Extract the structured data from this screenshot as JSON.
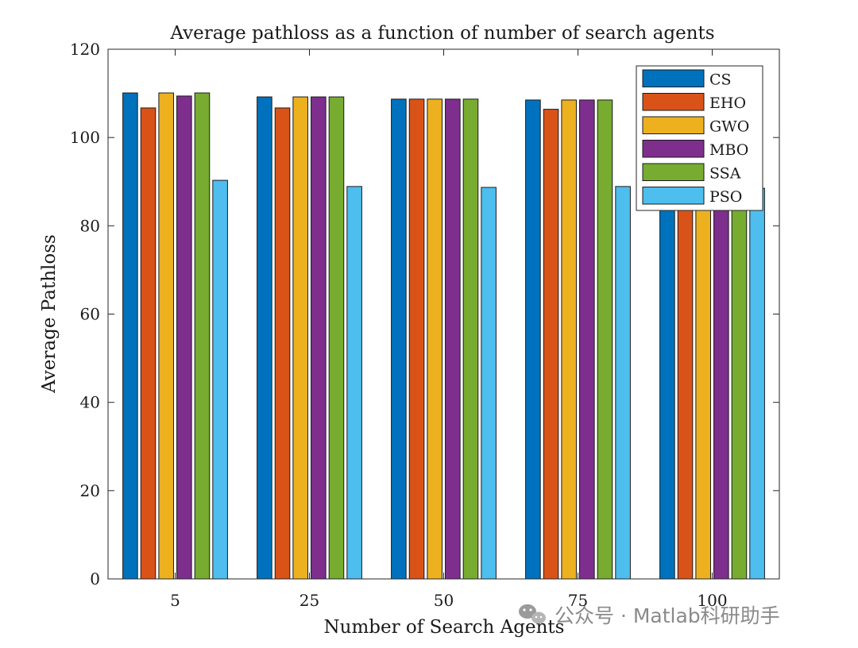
{
  "chart_data": {
    "type": "bar",
    "title": "Average pathloss as a function of number of search agents",
    "xlabel": "Number of Search Agents",
    "ylabel": "Average Pathloss",
    "categories": [
      "5",
      "25",
      "50",
      "75",
      "100"
    ],
    "ylim": [
      0,
      120
    ],
    "yticks": [
      "0",
      "20",
      "40",
      "60",
      "80",
      "100",
      "120"
    ],
    "grid": false,
    "legend_position": "top-right",
    "series": [
      {
        "name": "CS",
        "color": "#0072BD",
        "values": [
          110.1,
          109.2,
          108.7,
          108.5,
          88.5
        ]
      },
      {
        "name": "EHO",
        "color": "#D95319",
        "values": [
          106.7,
          106.7,
          108.7,
          106.4,
          88.5
        ]
      },
      {
        "name": "GWO",
        "color": "#EDB120",
        "values": [
          110.1,
          109.2,
          108.7,
          108.5,
          88.5
        ]
      },
      {
        "name": "MBO",
        "color": "#7E2F8E",
        "values": [
          109.4,
          109.2,
          108.7,
          108.5,
          88.5
        ]
      },
      {
        "name": "SSA",
        "color": "#77AC30",
        "values": [
          110.1,
          109.2,
          108.7,
          108.5,
          88.5
        ]
      },
      {
        "name": "PSO",
        "color": "#4DBEEE",
        "values": [
          90.3,
          88.9,
          88.7,
          88.9,
          88.5
        ]
      }
    ]
  },
  "watermark": {
    "text": "公众号 · Matlab科研助手",
    "icon": "wechat-icon"
  }
}
